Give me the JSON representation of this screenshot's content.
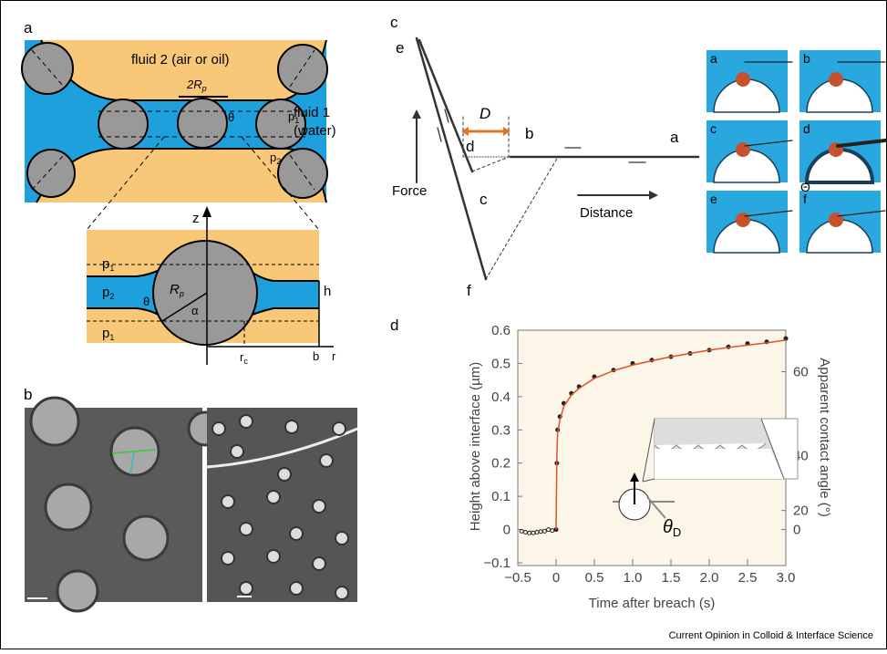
{
  "panel_labels": [
    "a",
    "b",
    "c",
    "d"
  ],
  "panel_a": {
    "fluid_2": "fluid 2 (air or oil)",
    "diameter": {
      "text": "2R",
      "sub": "p"
    },
    "theta": "θ",
    "p1": {
      "text": "p",
      "sub": "1"
    },
    "fluid_1": "fluid 1",
    "water": "(water)",
    "p2": {
      "text": "p",
      "sub": "2"
    },
    "inset": {
      "z": "z",
      "p1_top": {
        "text": "p",
        "sub": "1"
      },
      "p2": {
        "text": "p",
        "sub": "2"
      },
      "radius": {
        "text": "R",
        "sub": "p"
      },
      "theta": "θ",
      "alpha": "α",
      "h": "h",
      "p1_bottom": {
        "text": "p",
        "sub": "1"
      },
      "rc": {
        "text": "r",
        "sub": "c"
      },
      "b": "b",
      "r": "r"
    }
  },
  "panel_c": {
    "e": "e",
    "D": "D",
    "d": "d",
    "b": "b",
    "a": "a",
    "force": "Force",
    "c": "c",
    "distance": "Distance",
    "f": "f",
    "tiles": [
      "a",
      "b",
      "c",
      "d",
      "e",
      "f"
    ],
    "theta": "Θ"
  },
  "chart_data": {
    "type": "line",
    "xlabel": "Time after breach (s)",
    "ylabel": "Height above interface (µm)",
    "y2label": "Apparent contact angle (°)",
    "xlim": [
      -0.5,
      3.0
    ],
    "xticks": [
      {
        "value": -0.5,
        "label": "−0.5"
      },
      0,
      0.5,
      {
        "value": 1,
        "label": "1.0"
      },
      1.5,
      {
        "value": 2,
        "label": "2.0"
      },
      2.5,
      {
        "value": 3,
        "label": "3.0"
      }
    ],
    "ylim": [
      -0.1,
      0.6
    ],
    "yticks": [
      {
        "value": -0.1,
        "label": "−0.1"
      },
      0,
      0.1,
      0.2,
      0.3,
      0.4,
      0.5,
      0.6
    ],
    "y2ticks": [
      0,
      20,
      40,
      60
    ],
    "x": [
      -0.45,
      -0.4,
      -0.35,
      -0.3,
      -0.25,
      -0.2,
      -0.15,
      -0.1,
      -0.05,
      0,
      0.01,
      0.02,
      0.05,
      0.1,
      0.2,
      0.3,
      0.5,
      0.75,
      1,
      1.25,
      1.5,
      1.75,
      2,
      2.25,
      2.5,
      2.75,
      3
    ],
    "series": [
      {
        "color": "#222222",
        "values": [
          -0.005,
          -0.008,
          -0.01,
          -0.01,
          -0.008,
          -0.006,
          -0.005,
          0,
          -0.003,
          0,
          0.2,
          0.3,
          0.34,
          0.38,
          0.41,
          0.43,
          0.46,
          0.48,
          0.5,
          0.51,
          0.52,
          0.53,
          0.54,
          0.55,
          0.56,
          0.565,
          0.575
        ]
      },
      {
        "color": "#e0502a",
        "values": [
          null,
          null,
          null,
          null,
          null,
          null,
          null,
          null,
          null,
          0,
          0.22,
          0.29,
          0.33,
          0.37,
          0.405,
          0.425,
          0.455,
          0.478,
          0.495,
          0.508,
          0.52,
          0.53,
          0.54,
          0.548,
          0.555,
          0.562,
          0.57
        ]
      }
    ],
    "annotation": {
      "text": "θ",
      "sub": "D"
    }
  },
  "footer": "Current Opinion in Colloid & Interface Science"
}
